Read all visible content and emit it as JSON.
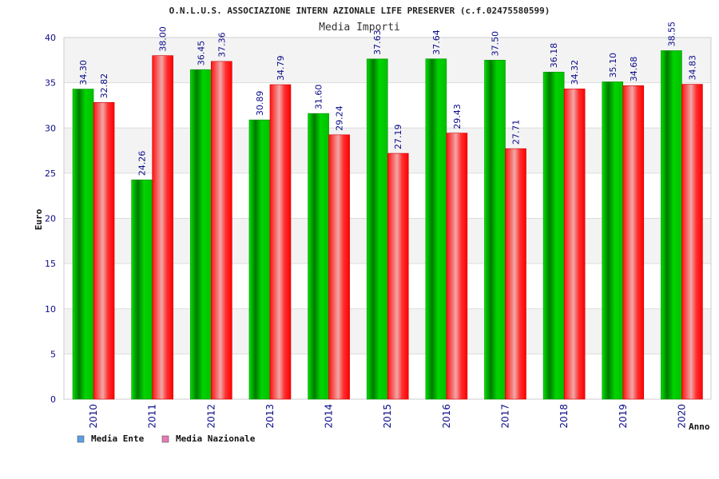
{
  "chart_data": {
    "type": "bar",
    "title": "O.N.L.U.S. ASSOCIAZIONE INTERN AZIONALE LIFE PRESERVER (c.f.02475580599)",
    "subtitle": "Media Importi",
    "ylabel": "Euro",
    "xlabel": "Anno",
    "ylim": [
      0,
      40
    ],
    "yticks": [
      "0",
      "5",
      "10",
      "15",
      "20",
      "25",
      "30",
      "35",
      "40"
    ],
    "categories": [
      "2010",
      "2011",
      "2012",
      "2013",
      "2014",
      "2015",
      "2016",
      "2017",
      "2018",
      "2019",
      "2020"
    ],
    "series": [
      {
        "name": "Media Ente",
        "color": "#00b400",
        "values": [
          34.3,
          24.26,
          36.45,
          30.89,
          31.6,
          37.63,
          37.64,
          37.5,
          36.18,
          35.1,
          38.55
        ],
        "labels": [
          "34.30",
          "24.26",
          "36.45",
          "30.89",
          "31.60",
          "37.63",
          "37.64",
          "37.50",
          "36.18",
          "35.10",
          "38.55"
        ]
      },
      {
        "name": "Media Nazionale",
        "color": "#ff0000",
        "values": [
          32.82,
          38.0,
          37.36,
          34.79,
          29.24,
          27.19,
          29.43,
          27.71,
          34.32,
          34.68,
          34.83
        ],
        "labels": [
          "32.82",
          "38.00",
          "37.36",
          "34.79",
          "29.24",
          "27.19",
          "29.43",
          "27.71",
          "34.32",
          "34.68",
          "34.83"
        ]
      }
    ],
    "legend": {
      "placement": "bottom-left",
      "items": [
        {
          "label": "Media Ente",
          "swatch_color": "#5aa0e6"
        },
        {
          "label": "Media Nazionale",
          "swatch_color": "#e67ab4"
        }
      ]
    },
    "grid": true,
    "band_colors": [
      "#ffffff",
      "#f3f3f3"
    ]
  }
}
